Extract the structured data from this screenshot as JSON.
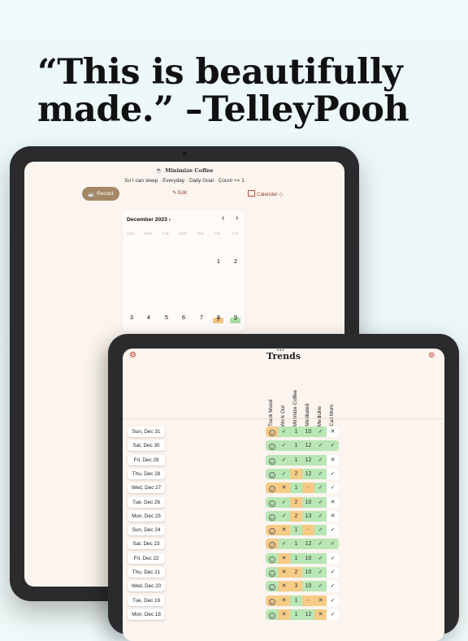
{
  "headline": {
    "line1": "“This is beautifully",
    "line2": "made.” –TelleyPooh"
  },
  "habit_screen": {
    "title": "Minimize Coffee",
    "title_icon": "no-coffee-icon",
    "subtitle": "So I can sleep · Everyday · Daily Goal · Count <= 1",
    "record_label": "Record",
    "edit_label": "Edit",
    "calendar_label": "Calendar ◇",
    "calendar": {
      "month": "December 2023",
      "weekdays": [
        "SUN",
        "MON",
        "TUE",
        "WED",
        "THU",
        "FRI",
        "SAT"
      ],
      "row1": [
        "1",
        "2"
      ],
      "badge_value": "2",
      "badge_goal": "–",
      "row3": [
        "3",
        "4",
        "5",
        "6",
        "7",
        "8",
        "9"
      ]
    }
  },
  "trends_screen": {
    "title": "Trends",
    "columns": [
      {
        "label": "Track Mood",
        "icon": "heart-icon"
      },
      {
        "label": "Work Out",
        "icon": "dumbbell-icon"
      },
      {
        "label": "Minimize Coffee",
        "icon": "no-coffee-icon"
      },
      {
        "label": "Meditated",
        "icon": "meditation-icon"
      },
      {
        "label": "Medicine",
        "icon": "pill-icon"
      },
      {
        "label": "Call Mom",
        "icon": "phone-icon"
      }
    ],
    "rows": [
      {
        "date": "Sun, Dec 31",
        "cells": [
          "☺",
          "✓",
          "1",
          "10",
          "✓",
          "✕"
        ],
        "colors": [
          "o",
          "g",
          "g",
          "g",
          "g",
          "w"
        ]
      },
      {
        "date": "Sat, Dec 30",
        "cells": [
          "☺",
          "✓",
          "1",
          "12",
          "✓",
          "✓"
        ],
        "colors": [
          "g",
          "g",
          "g",
          "g",
          "g",
          "g"
        ]
      },
      {
        "date": "Fri, Dec 29",
        "cells": [
          "☺",
          "✓",
          "1",
          "12",
          "✓",
          "✕"
        ],
        "colors": [
          "g",
          "g",
          "g",
          "g",
          "g",
          "w"
        ]
      },
      {
        "date": "Thu, Dec 28",
        "cells": [
          "☺",
          "✓",
          "2",
          "12",
          "✓",
          "✓"
        ],
        "colors": [
          "g",
          "g",
          "o",
          "g",
          "g",
          "w"
        ]
      },
      {
        "date": "Wed, Dec 27",
        "cells": [
          "☺",
          "✕",
          "1",
          "-",
          "✓",
          "✓"
        ],
        "colors": [
          "o",
          "o",
          "g",
          "o",
          "g",
          "w"
        ]
      },
      {
        "date": "Tue, Dec 26",
        "cells": [
          "☺",
          "✓",
          "2",
          "10",
          "✓",
          "✕"
        ],
        "colors": [
          "g",
          "g",
          "o",
          "g",
          "g",
          "w"
        ]
      },
      {
        "date": "Mon, Dec 25",
        "cells": [
          "☺",
          "✓",
          "2",
          "13",
          "✓",
          "✕"
        ],
        "colors": [
          "g",
          "g",
          "o",
          "g",
          "g",
          "w"
        ]
      },
      {
        "date": "Sun, Dec 24",
        "cells": [
          "☺",
          "✕",
          "1",
          "-",
          "✓",
          "✓"
        ],
        "colors": [
          "o",
          "o",
          "g",
          "o",
          "g",
          "w"
        ]
      },
      {
        "date": "Sat, Dec 23",
        "cells": [
          "☺",
          "✓",
          "1",
          "12",
          "✓",
          "✓"
        ],
        "colors": [
          "o",
          "g",
          "g",
          "g",
          "g",
          "g"
        ]
      },
      {
        "date": "Fri, Dec 22",
        "cells": [
          "☺",
          "✕",
          "1",
          "10",
          "✓",
          "✓"
        ],
        "colors": [
          "g",
          "o",
          "g",
          "g",
          "g",
          "w"
        ]
      },
      {
        "date": "Thu, Dec 21",
        "cells": [
          "☺",
          "✕",
          "2",
          "10",
          "✓",
          "✓"
        ],
        "colors": [
          "g",
          "o",
          "o",
          "g",
          "g",
          "w"
        ]
      },
      {
        "date": "Wed, Dec 20",
        "cells": [
          "☺",
          "✕",
          "3",
          "10",
          "✓",
          "✓"
        ],
        "colors": [
          "g",
          "o",
          "o",
          "g",
          "g",
          "w"
        ]
      },
      {
        "date": "Tue, Dec 19",
        "cells": [
          "☺",
          "✕",
          "1",
          "-",
          "✕",
          "✓"
        ],
        "colors": [
          "o",
          "o",
          "g",
          "o",
          "o",
          "w"
        ]
      },
      {
        "date": "Mon, Dec 18",
        "cells": [
          "☺",
          "✕",
          "1",
          "12",
          "✕",
          "✓"
        ],
        "colors": [
          "g",
          "o",
          "g",
          "g",
          "o",
          "w"
        ]
      }
    ]
  }
}
